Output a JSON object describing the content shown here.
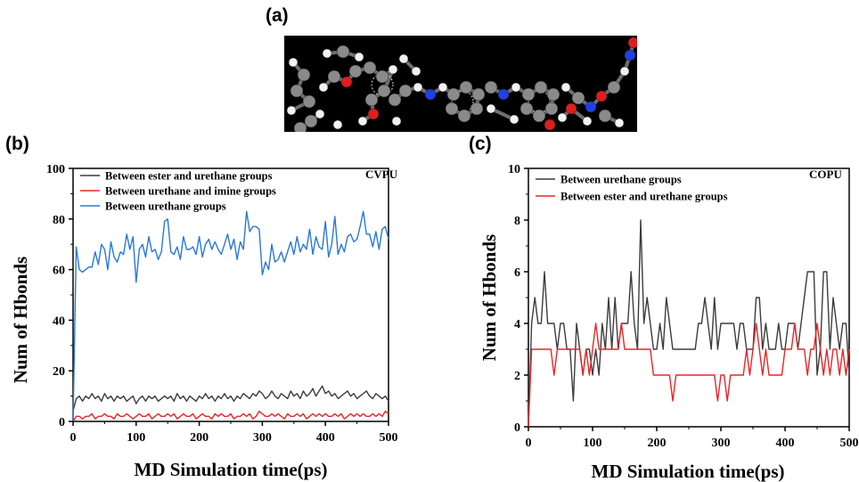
{
  "panels": {
    "a": "(a)",
    "b": "(b)",
    "c": "(c)"
  },
  "colors": {
    "black": "#000000",
    "gray": "#3c3c3c",
    "red": "#e8262a",
    "blue": "#2a78d8",
    "molecule_background": "#000000"
  },
  "chart_data": [
    {
      "type": "line",
      "panel": "(b)",
      "tag": "CVPU",
      "xlabel": "MD Simulation time(ps)",
      "ylabel": "Num of Hbonds",
      "xlim": [
        0,
        500
      ],
      "ylim": [
        0,
        100
      ],
      "xticks": [
        0,
        100,
        200,
        300,
        400,
        500
      ],
      "yticks": [
        0,
        20,
        40,
        60,
        80,
        100
      ],
      "grid": false,
      "legend_position": "top-left",
      "x": [
        0,
        5,
        10,
        15,
        20,
        25,
        30,
        35,
        40,
        45,
        50,
        55,
        60,
        65,
        70,
        75,
        80,
        85,
        90,
        95,
        100,
        105,
        110,
        115,
        120,
        125,
        130,
        135,
        140,
        145,
        150,
        155,
        160,
        165,
        170,
        175,
        180,
        185,
        190,
        195,
        200,
        205,
        210,
        215,
        220,
        225,
        230,
        235,
        240,
        245,
        250,
        255,
        260,
        265,
        270,
        275,
        280,
        285,
        290,
        295,
        300,
        305,
        310,
        315,
        320,
        325,
        330,
        335,
        340,
        345,
        350,
        355,
        360,
        365,
        370,
        375,
        380,
        385,
        390,
        395,
        400,
        405,
        410,
        415,
        420,
        425,
        430,
        435,
        440,
        445,
        450,
        455,
        460,
        465,
        470,
        475,
        480,
        485,
        490,
        495,
        500
      ],
      "series": [
        {
          "name": "Between ester and urethane groups",
          "color": "#3c3c3c",
          "values": [
            4,
            9,
            10,
            8,
            10,
            9,
            11,
            9,
            10,
            8,
            11,
            9,
            10,
            8,
            10,
            9,
            10,
            8,
            9,
            10,
            7,
            9,
            10,
            8,
            10,
            9,
            10,
            8,
            9,
            10,
            9,
            10,
            8,
            11,
            9,
            10,
            8,
            10,
            9,
            8,
            10,
            9,
            11,
            9,
            10,
            8,
            10,
            9,
            11,
            9,
            10,
            8,
            10,
            9,
            11,
            10,
            9,
            11,
            10,
            12,
            11,
            9,
            10,
            12,
            10,
            9,
            11,
            10,
            9,
            12,
            10,
            11,
            9,
            12,
            10,
            11,
            13,
            10,
            12,
            14,
            11,
            12,
            10,
            11,
            9,
            10,
            11,
            12,
            10,
            11,
            9,
            10,
            11,
            12,
            10,
            9,
            11,
            10,
            9,
            10,
            8
          ]
        },
        {
          "name": "Between urethane and imine groups",
          "color": "#e8262a",
          "values": [
            0,
            2,
            2,
            1,
            2,
            2,
            3,
            1,
            2,
            2,
            3,
            2,
            2,
            1,
            3,
            2,
            2,
            3,
            2,
            1,
            2,
            3,
            2,
            2,
            3,
            1,
            2,
            3,
            2,
            2,
            3,
            2,
            3,
            1,
            2,
            3,
            2,
            2,
            3,
            1,
            2,
            3,
            2,
            2,
            1,
            3,
            2,
            3,
            2,
            2,
            3,
            1,
            2,
            2,
            3,
            2,
            3,
            1,
            2,
            4,
            3,
            2,
            2,
            3,
            2,
            3,
            2,
            1,
            3,
            2,
            2,
            3,
            2,
            3,
            1,
            2,
            3,
            2,
            3,
            2,
            3,
            2,
            2,
            3,
            2,
            3,
            1,
            2,
            3,
            2,
            3,
            2,
            3,
            2,
            2,
            3,
            2,
            3,
            2,
            4,
            3
          ]
        },
        {
          "name": "Between urethane groups",
          "color": "#2a78d8",
          "values": [
            0,
            69,
            60,
            59,
            60,
            61,
            61,
            67,
            62,
            70,
            68,
            60,
            71,
            65,
            63,
            67,
            66,
            74,
            68,
            73,
            55,
            68,
            70,
            65,
            73,
            67,
            68,
            64,
            67,
            79,
            80,
            67,
            66,
            69,
            64,
            73,
            68,
            68,
            69,
            66,
            73,
            65,
            70,
            72,
            68,
            71,
            68,
            66,
            70,
            74,
            68,
            72,
            64,
            71,
            68,
            83,
            75,
            77,
            77,
            76,
            58,
            63,
            60,
            70,
            63,
            64,
            67,
            63,
            67,
            71,
            66,
            73,
            67,
            70,
            68,
            76,
            66,
            73,
            69,
            68,
            79,
            65,
            70,
            81,
            66,
            70,
            67,
            73,
            74,
            71,
            72,
            77,
            83,
            74,
            74,
            69,
            75,
            68,
            76,
            77,
            72
          ]
        }
      ]
    },
    {
      "type": "line",
      "panel": "(c)",
      "tag": "COPU",
      "xlabel": "MD Simulation time(ps)",
      "ylabel": "Num of Hbonds",
      "xlim": [
        0,
        500
      ],
      "ylim": [
        0,
        10
      ],
      "xticks": [
        0,
        100,
        200,
        300,
        400,
        500
      ],
      "yticks": [
        0,
        2,
        4,
        6,
        8,
        10
      ],
      "grid": false,
      "legend_position": "top-left",
      "x": [
        0,
        5,
        10,
        15,
        20,
        25,
        30,
        35,
        40,
        45,
        50,
        55,
        60,
        65,
        70,
        75,
        80,
        85,
        90,
        95,
        100,
        105,
        110,
        115,
        120,
        125,
        130,
        135,
        140,
        145,
        150,
        155,
        160,
        165,
        170,
        175,
        180,
        185,
        190,
        195,
        200,
        205,
        210,
        215,
        220,
        225,
        230,
        235,
        240,
        245,
        250,
        255,
        260,
        265,
        270,
        275,
        280,
        285,
        290,
        295,
        300,
        305,
        310,
        315,
        320,
        325,
        330,
        335,
        340,
        345,
        350,
        355,
        360,
        365,
        370,
        375,
        380,
        385,
        390,
        395,
        400,
        405,
        410,
        415,
        420,
        425,
        430,
        435,
        440,
        445,
        450,
        455,
        460,
        465,
        470,
        475,
        480,
        485,
        490,
        495,
        500
      ],
      "series": [
        {
          "name": "Between urethane groups",
          "color": "#3c3c3c",
          "values": [
            0,
            4,
            5,
            4,
            4,
            6,
            4,
            4,
            4,
            3,
            4,
            4,
            3,
            3,
            1,
            4,
            3,
            2,
            3,
            3,
            2,
            3,
            2,
            4,
            3,
            5,
            3,
            5,
            3,
            4,
            4,
            4,
            6,
            4,
            3,
            8,
            4,
            5,
            4,
            3,
            3,
            4,
            3,
            5,
            4,
            3,
            3,
            3,
            3,
            3,
            3,
            3,
            3,
            4,
            4,
            5,
            4,
            3,
            5,
            3,
            4,
            4,
            4,
            4,
            4,
            3,
            4,
            4,
            3,
            3,
            3,
            5,
            5,
            3,
            4,
            3,
            3,
            3,
            4,
            3,
            3,
            4,
            4,
            4,
            3,
            4,
            5,
            6,
            6,
            6,
            2,
            3,
            6,
            6,
            3,
            5,
            4,
            3,
            4,
            4,
            2
          ]
        },
        {
          "name": "Between ester and urethane groups",
          "color": "#e8262a",
          "values": [
            0,
            3,
            3,
            3,
            3,
            3,
            3,
            3,
            2,
            3,
            3,
            3,
            3,
            3,
            3,
            3,
            3,
            2,
            3,
            2,
            3,
            4,
            3,
            3,
            3,
            3,
            3,
            3,
            3,
            4,
            3,
            3,
            3,
            3,
            3,
            3,
            3,
            3,
            3,
            2,
            2,
            2,
            2,
            2,
            2,
            1,
            2,
            2,
            2,
            2,
            2,
            2,
            2,
            2,
            2,
            2,
            2,
            2,
            2,
            1,
            2,
            2,
            1,
            2,
            2,
            2,
            2,
            2,
            3,
            2,
            3,
            4,
            3,
            2,
            3,
            2,
            2,
            2,
            2,
            2,
            3,
            3,
            3,
            4,
            3,
            3,
            3,
            2,
            3,
            3,
            4,
            3,
            2,
            3,
            2,
            3,
            3,
            2,
            3,
            2,
            3
          ]
        }
      ]
    }
  ]
}
